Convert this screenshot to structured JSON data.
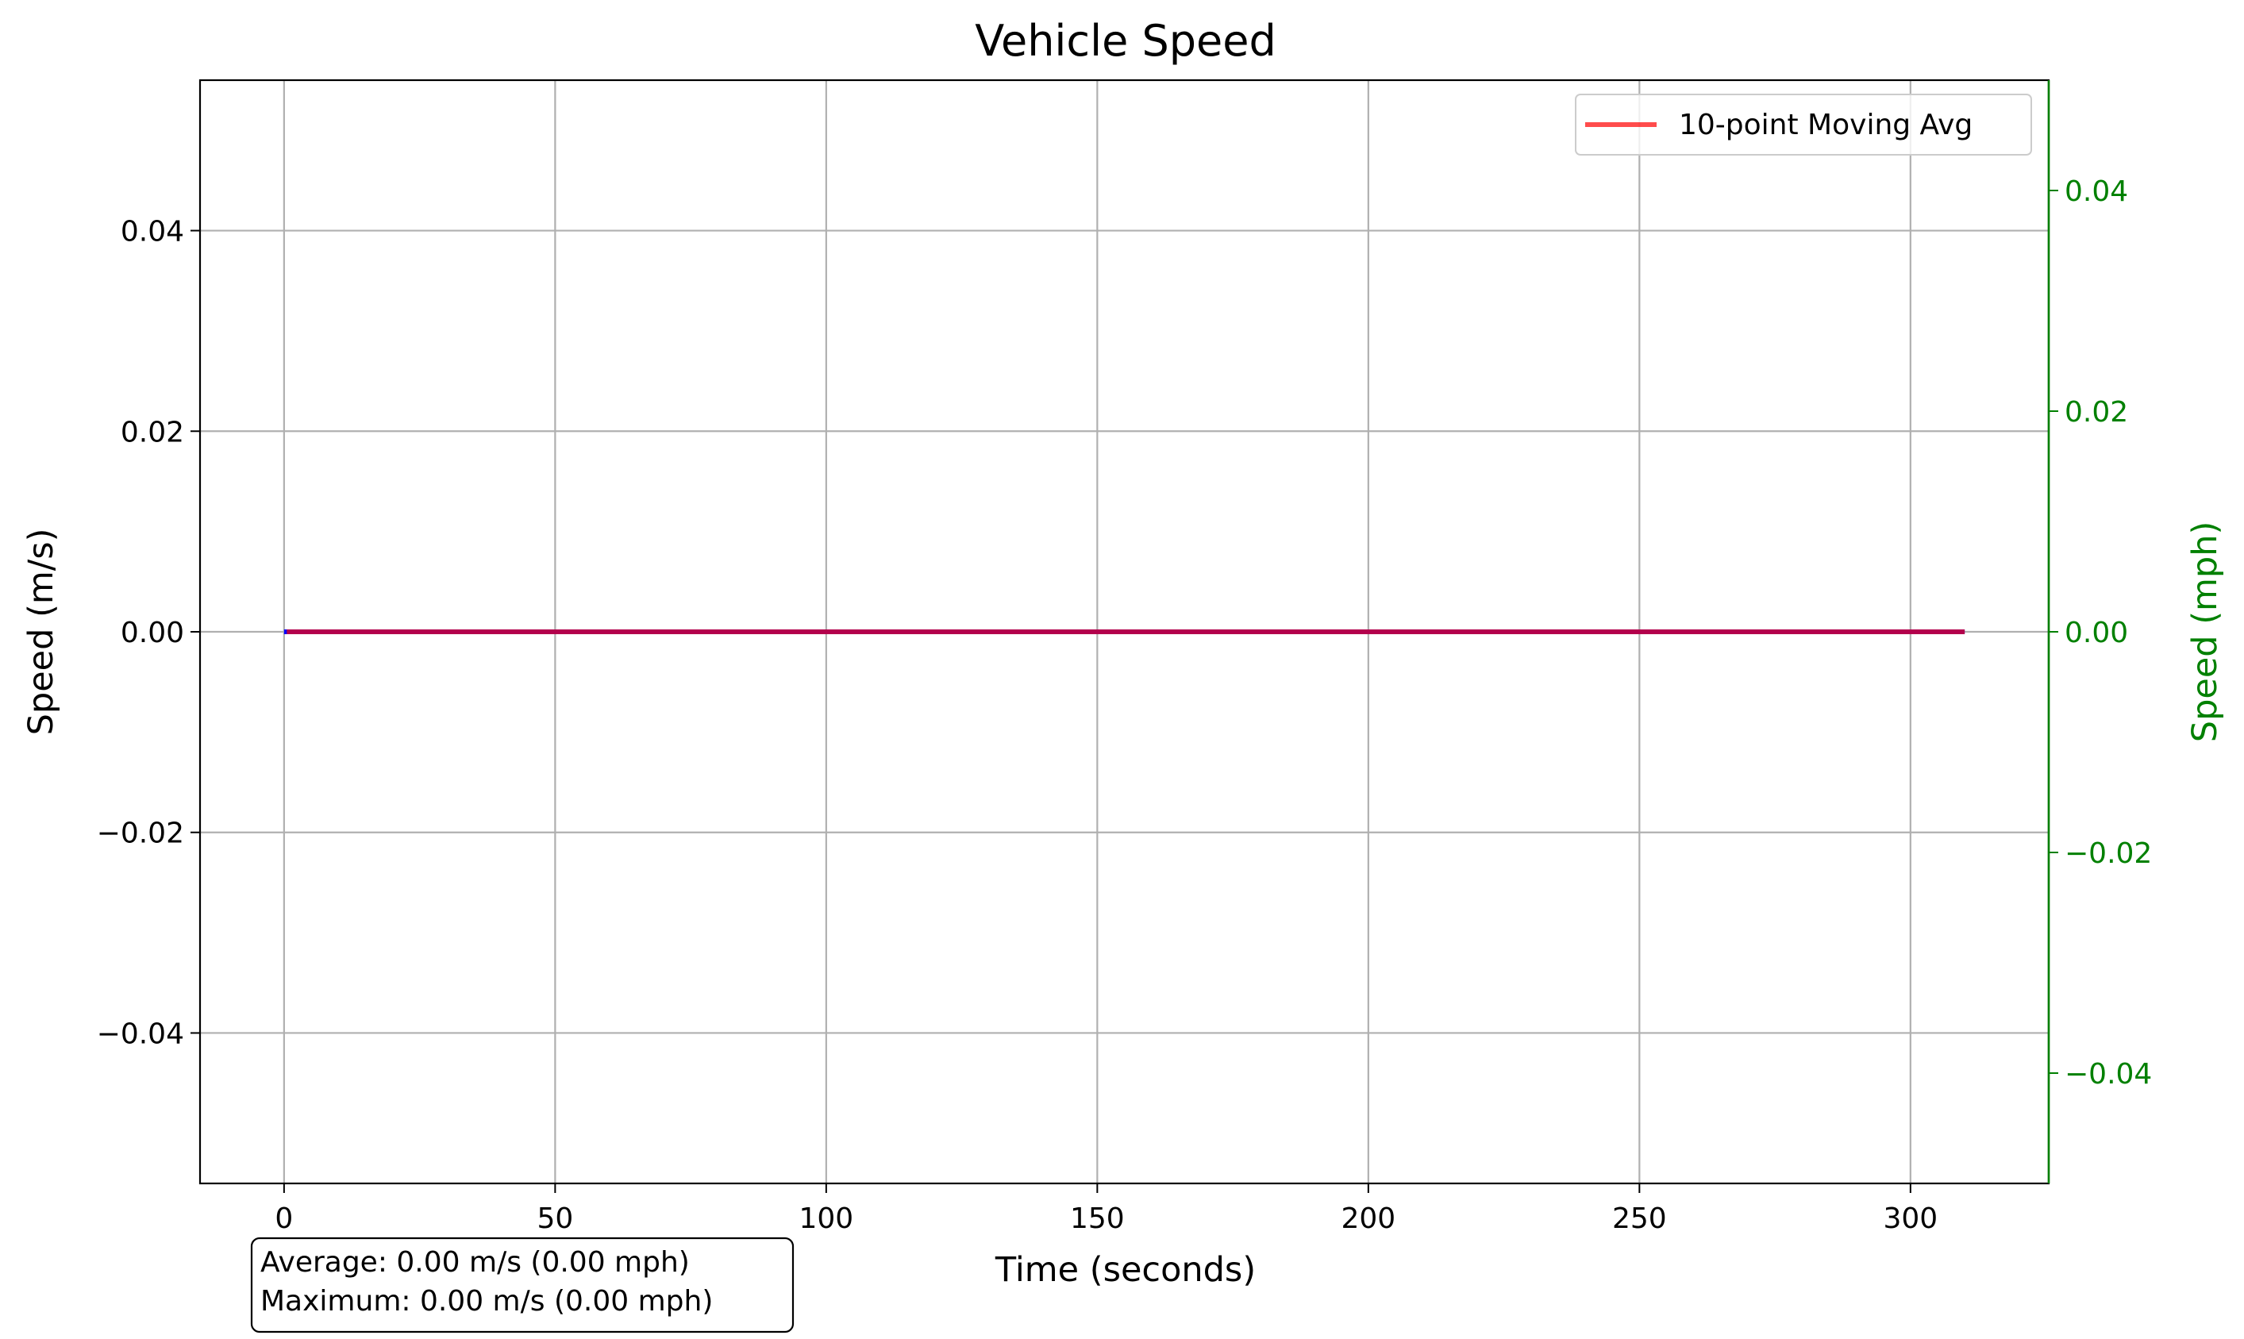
{
  "chart_data": {
    "type": "line",
    "title": "Vehicle Speed",
    "xlabel": "Time (seconds)",
    "ylabel": "Speed (m/s)",
    "y2label": "Speed (mph)",
    "xlim": [
      -15.5,
      325.5
    ],
    "ylim": [
      -0.055,
      0.055
    ],
    "y2lim": [
      -0.05,
      0.05
    ],
    "x_ticks": [
      0,
      50,
      100,
      150,
      200,
      250,
      300
    ],
    "y_ticks": [
      -0.04,
      -0.02,
      0.0,
      0.02,
      0.04
    ],
    "y2_ticks": [
      -0.04,
      -0.02,
      0.0,
      0.02,
      0.04
    ],
    "grid": true,
    "legend_position": "upper right",
    "series": [
      {
        "color": "#0000ff",
        "x": [
          0,
          310
        ],
        "y": [
          0.0,
          0.0
        ]
      },
      {
        "name": "10-point Moving Avg",
        "color": "#ff0000",
        "opacity": 0.7,
        "x": [
          0.5,
          310
        ],
        "y": [
          0.0,
          0.0
        ]
      }
    ],
    "stats_box": {
      "average": "Average: 0.00 m/s (0.00 mph)",
      "maximum": "Maximum: 0.00 m/s (0.00 mph)"
    },
    "colors": {
      "secondary_axis": "#008000",
      "grid": "#b0b0b0"
    }
  }
}
